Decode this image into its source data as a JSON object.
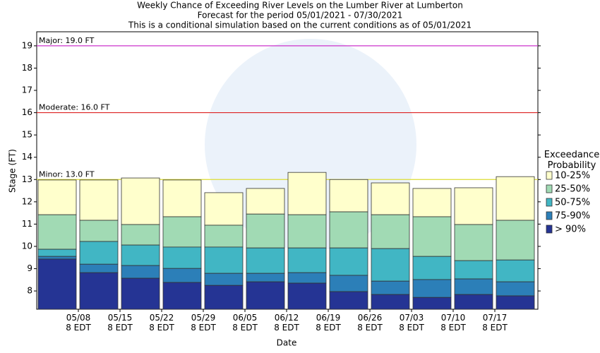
{
  "chart_data": {
    "type": "bar",
    "title": "Weekly Chance of Exceeding River Levels on the Lumber River at Lumberton",
    "subtitle": [
      "Forecast for the period 05/01/2021 - 07/30/2021",
      "This is a conditional simulation based on the current conditions as of 05/01/2021"
    ],
    "x_label": "Date",
    "y_label": "Stage (FT)",
    "categories": [
      "05/08\n8 EDT",
      "05/15\n8 EDT",
      "05/22\n8 EDT",
      "05/29\n8 EDT",
      "06/05\n8 EDT",
      "06/12\n8 EDT",
      "06/19\n8 EDT",
      "06/26\n8 EDT",
      "07/03\n8 EDT",
      "07/10\n8 EDT",
      "07/17\n8 EDT",
      null
    ],
    "legend_title": "Exceedance Probability",
    "series": [
      {
        "name": "10-25%",
        "color": "#ffffcc",
        "values": [
          12.98,
          12.98,
          13.07,
          12.98,
          12.41,
          12.6,
          13.32,
          13.0,
          12.85,
          12.6,
          12.63,
          13.13
        ]
      },
      {
        "name": "25-50%",
        "color": "#a1dab4",
        "values": [
          11.42,
          11.17,
          10.98,
          11.33,
          10.95,
          11.45,
          11.42,
          11.55,
          11.42,
          11.33,
          10.98,
          11.17
        ]
      },
      {
        "name": "50-75%",
        "color": "#41b6c4",
        "values": [
          9.87,
          10.22,
          10.06,
          9.97,
          9.97,
          9.93,
          9.93,
          9.93,
          9.9,
          9.55,
          9.36,
          9.39
        ]
      },
      {
        "name": "75-90%",
        "color": "#2c7fb8",
        "values": [
          9.55,
          9.2,
          9.14,
          9.01,
          8.79,
          8.79,
          8.82,
          8.7,
          8.44,
          8.51,
          8.54,
          8.41
        ]
      },
      {
        "name": "> 90%",
        "color": "#253494",
        "values": [
          9.43,
          8.82,
          8.57,
          8.38,
          8.25,
          8.41,
          8.35,
          7.97,
          7.84,
          7.71,
          7.84,
          7.78
        ]
      }
    ],
    "thresholds": [
      {
        "label": "Major: 19.0 FT",
        "value": 19,
        "color": "#cc33cc"
      },
      {
        "label": "Moderate: 16.0 FT",
        "value": 16,
        "color": "#dd2222"
      },
      {
        "label": "Minor: 13.0 FT",
        "value": 13,
        "color": "#dddd33"
      }
    ],
    "ylim": [
      7.18,
      19.63
    ],
    "yticks": [
      8,
      9,
      10,
      11,
      12,
      13,
      14,
      15,
      16,
      17,
      18,
      19
    ]
  }
}
